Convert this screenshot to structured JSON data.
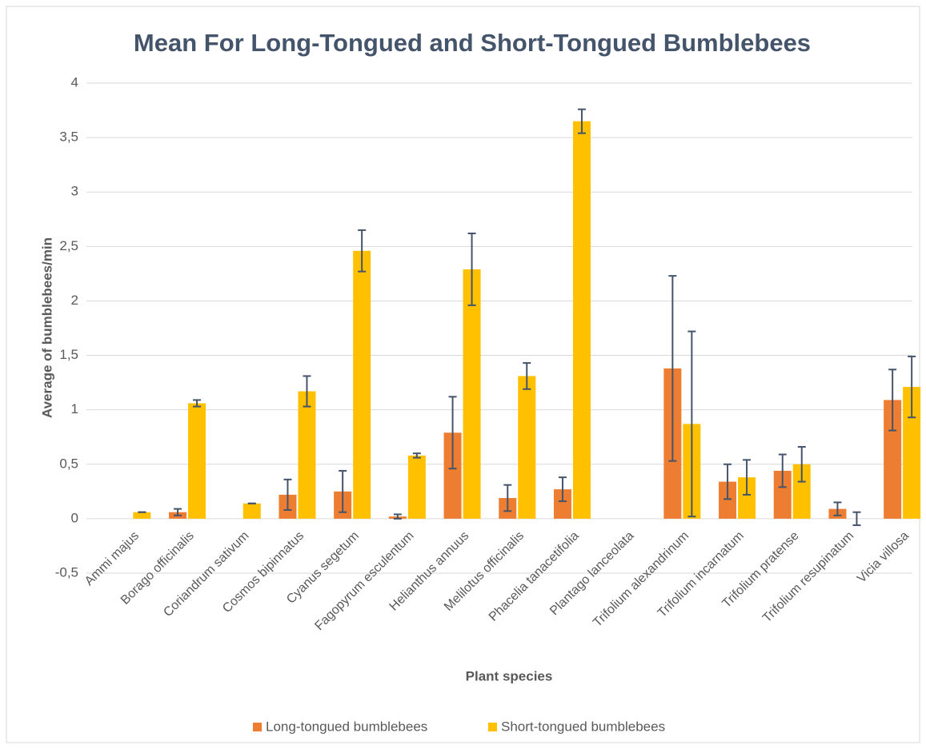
{
  "chart_data": {
    "type": "bar",
    "title": "Mean For Long-Tongued and Short-Tongued Bumblebees",
    "x_label": "Plant species",
    "y_label": "Average of bumblebees/min",
    "categories": [
      "Ammi majus",
      "Borago officinalis",
      "Coriandrum sativum",
      "Cosmos bipinnatus",
      "Cyanus segetum",
      "Fagopyrum esculentum",
      "Helianthus annuus",
      "Melilotus officinalis",
      "Phacelia tanacetifolia",
      "Plantago lanceolata",
      "Trifolium alexandrinum",
      "Trifolium incarnatum",
      "Trifolium pratense",
      "Trifolium resupinatum",
      "Vicia villosa"
    ],
    "series": [
      {
        "name": "Long-tongued bumblebees",
        "color": "#ed7d31",
        "values": [
          0,
          0.06,
          0,
          0.22,
          0.25,
          0.02,
          0.79,
          0.19,
          0.27,
          0,
          1.38,
          0.34,
          0.44,
          0.09,
          1.09
        ],
        "errors": [
          null,
          0.03,
          null,
          0.14,
          0.19,
          0.02,
          0.33,
          0.12,
          0.11,
          null,
          0.85,
          0.16,
          0.15,
          0.06,
          0.28
        ]
      },
      {
        "name": "Short-tongued bumblebees",
        "color": "#ffc000",
        "values": [
          0.06,
          1.06,
          0.14,
          1.17,
          2.46,
          0.58,
          2.29,
          1.31,
          3.65,
          0,
          0.87,
          0.38,
          0.5,
          0,
          1.21
        ],
        "errors": [
          0,
          0.03,
          0,
          0.14,
          0.19,
          0.02,
          0.33,
          0.12,
          0.11,
          null,
          0.85,
          0.16,
          0.16,
          0.06,
          0.28
        ]
      }
    ],
    "ylim": [
      -0.5,
      4
    ],
    "yticks": [
      {
        "value": -0.5,
        "label": "-0,5"
      },
      0,
      {
        "value": 0.5,
        "label": "0,5"
      },
      1,
      {
        "value": 1.5,
        "label": "1,5"
      },
      2,
      {
        "value": 2.5,
        "label": "2,5"
      },
      3,
      {
        "value": 3.5,
        "label": "3,5"
      },
      4
    ],
    "grid": true,
    "legend": "bottom"
  }
}
